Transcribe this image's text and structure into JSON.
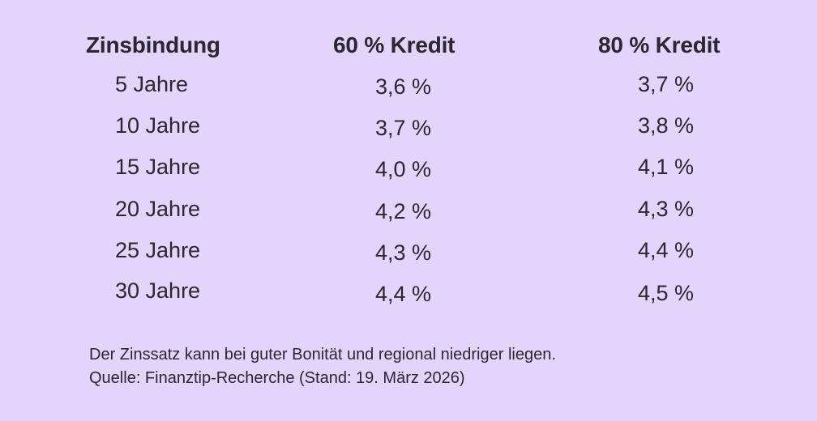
{
  "colors": {
    "background": "#e2d4fb",
    "text": "#2b2630"
  },
  "chart_data": {
    "type": "table",
    "columns": [
      "Zinsbindung",
      "60 % Kredit",
      "80 % Kredit"
    ],
    "rows": [
      {
        "term": "5 Jahre",
        "kredit_60": "3,6 %",
        "kredit_80": "3,7 %"
      },
      {
        "term": "10 Jahre",
        "kredit_60": "3,7 %",
        "kredit_80": "3,8 %"
      },
      {
        "term": "15 Jahre",
        "kredit_60": "4,0 %",
        "kredit_80": "4,1 %"
      },
      {
        "term": "20 Jahre",
        "kredit_60": "4,2 %",
        "kredit_80": "4,3 %"
      },
      {
        "term": "25 Jahre",
        "kredit_60": "4,3 %",
        "kredit_80": "4,4 %"
      },
      {
        "term": "30 Jahre",
        "kredit_60": "4,4 %",
        "kredit_80": "4,5 %"
      }
    ],
    "footnotes": [
      "Der Zinssatz kann bei guter Bonität und regional niedriger liegen.",
      "Quelle: Finanztip-Recherche (Stand: 19. März 2026)"
    ]
  }
}
